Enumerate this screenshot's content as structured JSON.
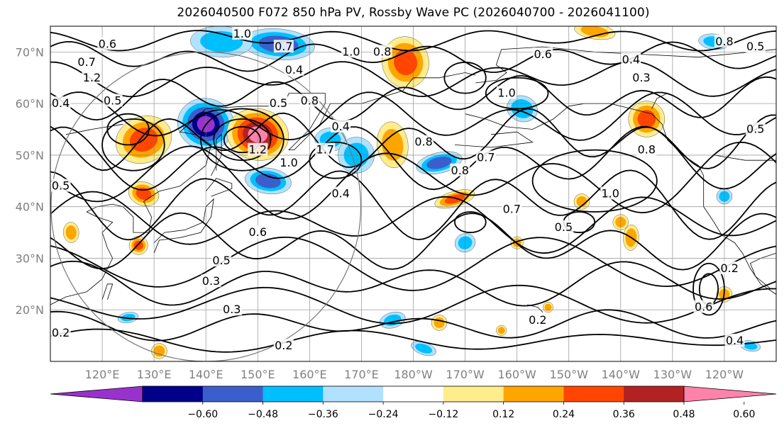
{
  "title": "2026040500 F072 850 hPa PV, Rossby Wave PC (2026040700 - 2026041100)",
  "map": {
    "projection": "PlateCarree",
    "lon_range": [
      110,
      250
    ],
    "lat_range": [
      10,
      75
    ],
    "lat_labels": [
      "70°N",
      "60°N",
      "50°N",
      "40°N",
      "30°N",
      "20°N"
    ],
    "lon_labels": [
      "120°E",
      "130°E",
      "140°E",
      "150°E",
      "160°E",
      "170°E",
      "180°W",
      "170°W",
      "160°W",
      "150°W",
      "140°W",
      "130°W",
      "120°W"
    ],
    "grid": true,
    "circle_overlay": {
      "center_lon": 140,
      "center_lat": 40,
      "radius_deg": 30
    }
  },
  "contour_labels": [
    {
      "text": "1.0",
      "lon": 147,
      "lat": 73.5
    },
    {
      "text": "0.7",
      "lon": 155,
      "lat": 71
    },
    {
      "text": "1.0",
      "lon": 168,
      "lat": 70
    },
    {
      "text": "0.8",
      "lon": 174,
      "lat": 70
    },
    {
      "text": "0.4",
      "lon": 157,
      "lat": 66.5
    },
    {
      "text": "0.6",
      "lon": 121,
      "lat": 71.5
    },
    {
      "text": "0.7",
      "lon": 117,
      "lat": 68
    },
    {
      "text": "1.2",
      "lon": 118,
      "lat": 65
    },
    {
      "text": "0.4",
      "lon": 112,
      "lat": 60
    },
    {
      "text": "0.5",
      "lon": 122,
      "lat": 60.5
    },
    {
      "text": "0.5",
      "lon": 154,
      "lat": 60
    },
    {
      "text": "0.8",
      "lon": 160,
      "lat": 60.5
    },
    {
      "text": "0.4",
      "lon": 166,
      "lat": 55.5
    },
    {
      "text": "0.8",
      "lon": 182,
      "lat": 52.5
    },
    {
      "text": "1.2",
      "lon": 150,
      "lat": 51
    },
    {
      "text": "1.0",
      "lon": 156,
      "lat": 48.5
    },
    {
      "text": "1.7",
      "lon": 163,
      "lat": 51
    },
    {
      "text": "0.4",
      "lon": 166,
      "lat": 42.5
    },
    {
      "text": "0.8",
      "lon": 189,
      "lat": 47
    },
    {
      "text": "0.7",
      "lon": 194,
      "lat": 49.5
    },
    {
      "text": "1.0",
      "lon": 198,
      "lat": 62
    },
    {
      "text": "0.6",
      "lon": 205,
      "lat": 69.5
    },
    {
      "text": "0.4",
      "lon": 222,
      "lat": 68.5
    },
    {
      "text": "0.3",
      "lon": 224,
      "lat": 65
    },
    {
      "text": "0.8",
      "lon": 225,
      "lat": 51
    },
    {
      "text": "1.0",
      "lon": 218,
      "lat": 42.5
    },
    {
      "text": "0.7",
      "lon": 199,
      "lat": 39.5
    },
    {
      "text": "0.5",
      "lon": 209,
      "lat": 36
    },
    {
      "text": "0.6",
      "lon": 150,
      "lat": 35
    },
    {
      "text": "0.5",
      "lon": 143,
      "lat": 29.5
    },
    {
      "text": "0.3",
      "lon": 141,
      "lat": 25.5
    },
    {
      "text": "0.3",
      "lon": 145,
      "lat": 20
    },
    {
      "text": "0.2",
      "lon": 155,
      "lat": 13
    },
    {
      "text": "0.2",
      "lon": 112,
      "lat": 15.5
    },
    {
      "text": "0.2",
      "lon": 204,
      "lat": 18
    },
    {
      "text": "0.2",
      "lon": 241,
      "lat": 28
    },
    {
      "text": "0.6",
      "lon": 236,
      "lat": 20.5
    },
    {
      "text": "0.4",
      "lon": 242,
      "lat": 14
    },
    {
      "text": "0.5",
      "lon": 246,
      "lat": 55
    },
    {
      "text": "0.5",
      "lon": 112,
      "lat": 44
    },
    {
      "text": "0.8",
      "lon": 240,
      "lat": 72
    },
    {
      "text": "0.5",
      "lon": 246,
      "lat": 71
    }
  ],
  "shaded_fields": [
    {
      "lon": 128,
      "lat": 53,
      "rx": 5.5,
      "ry": 4.5,
      "value": 0.4
    },
    {
      "lon": 128,
      "lat": 42.5,
      "rx": 3,
      "ry": 2.3,
      "value": 0.4
    },
    {
      "lon": 140,
      "lat": 56,
      "rx": 5.5,
      "ry": 5,
      "value": -0.62
    },
    {
      "lon": 150,
      "lat": 54,
      "rx": 6,
      "ry": 5,
      "value": 0.62
    },
    {
      "lon": 152,
      "lat": 45,
      "rx": 4.5,
      "ry": 2.5,
      "value": -0.45
    },
    {
      "lon": 154,
      "lat": 71.5,
      "rx": 7,
      "ry": 3,
      "value": -0.45
    },
    {
      "lon": 143,
      "lat": 72,
      "rx": 6,
      "ry": 3,
      "value": -0.3
    },
    {
      "lon": 164,
      "lat": 53,
      "rx": 3,
      "ry": 2.3,
      "value": -0.3
    },
    {
      "lon": 169,
      "lat": 50,
      "rx": 3.5,
      "ry": 3.5,
      "value": -0.3
    },
    {
      "lon": 176,
      "lat": 52,
      "rx": 3,
      "ry": 4.5,
      "value": 0.3
    },
    {
      "lon": 178.5,
      "lat": 68,
      "rx": 4.5,
      "ry": 5,
      "value": 0.4
    },
    {
      "lon": 185,
      "lat": 48.5,
      "rx": 4.5,
      "ry": 2,
      "value": -0.45
    },
    {
      "lon": 188,
      "lat": 41.5,
      "rx": 4,
      "ry": 1.5,
      "value": 0.4
    },
    {
      "lon": 190,
      "lat": 33,
      "rx": 2,
      "ry": 1.8,
      "value": -0.3
    },
    {
      "lon": 201,
      "lat": 59,
      "rx": 3,
      "ry": 2.5,
      "value": -0.35
    },
    {
      "lon": 212.5,
      "lat": 41,
      "rx": 1.5,
      "ry": 1.5,
      "value": 0.3
    },
    {
      "lon": 225,
      "lat": 57,
      "rx": 3.5,
      "ry": 3.5,
      "value": 0.4
    },
    {
      "lon": 215,
      "lat": 74,
      "rx": 4,
      "ry": 1.5,
      "value": 0.3
    },
    {
      "lon": 238,
      "lat": 72,
      "rx": 3,
      "ry": 1.5,
      "value": -0.3
    },
    {
      "lon": 222,
      "lat": 34,
      "rx": 1.5,
      "ry": 2.5,
      "value": 0.35
    },
    {
      "lon": 220,
      "lat": 37,
      "rx": 1.5,
      "ry": 1.5,
      "value": 0.3
    },
    {
      "lon": 114,
      "lat": 35,
      "rx": 1.5,
      "ry": 2,
      "value": 0.3
    },
    {
      "lon": 127,
      "lat": 32.5,
      "rx": 1.8,
      "ry": 1.8,
      "value": 0.4
    },
    {
      "lon": 125,
      "lat": 18.5,
      "rx": 2,
      "ry": 1,
      "value": -0.3
    },
    {
      "lon": 131,
      "lat": 12,
      "rx": 1.5,
      "ry": 1.5,
      "value": 0.35
    },
    {
      "lon": 176,
      "lat": 18,
      "rx": 2.5,
      "ry": 1.5,
      "value": -0.3
    },
    {
      "lon": 185,
      "lat": 17.5,
      "rx": 1.5,
      "ry": 1.5,
      "value": 0.3
    },
    {
      "lon": 182,
      "lat": 12.5,
      "rx": 2.5,
      "ry": 1.2,
      "value": -0.3
    },
    {
      "lon": 240,
      "lat": 42,
      "rx": 1.5,
      "ry": 1.5,
      "value": -0.3
    },
    {
      "lon": 240,
      "lat": 23,
      "rx": 1.5,
      "ry": 1.5,
      "value": 0.3
    },
    {
      "lon": 245,
      "lat": 13,
      "rx": 2,
      "ry": 1,
      "value": -0.3
    },
    {
      "lon": 200,
      "lat": 33,
      "rx": 1.2,
      "ry": 1.2,
      "value": 0.3
    },
    {
      "lon": 197,
      "lat": 16,
      "rx": 1,
      "ry": 1,
      "value": 0.3
    },
    {
      "lon": 206,
      "lat": 20.5,
      "rx": 1,
      "ry": 1,
      "value": 0.3
    }
  ],
  "colorbar": {
    "tick_labels": [
      "−0.60",
      "−0.48",
      "−0.36",
      "−0.24",
      "−0.12",
      "0.12",
      "0.24",
      "0.36",
      "0.48",
      "0.60"
    ],
    "colors": [
      "#9932cc",
      "#00008b",
      "#3a5fcd",
      "#00bfff",
      "#b0e2ff",
      "#ffffff",
      "#ffec8b",
      "#ffa500",
      "#ff4500",
      "#b22222",
      "#ff82ab"
    ],
    "extend": "both"
  }
}
